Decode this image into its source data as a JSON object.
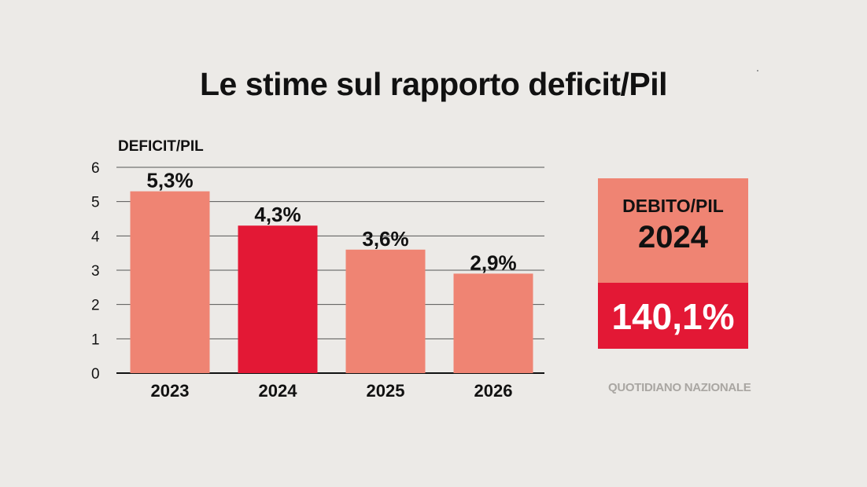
{
  "title": "Le stime sul rapporto deficit/Pil",
  "chart_data": {
    "type": "bar",
    "ylabel": "DEFICIT/PIL",
    "ylim": [
      0,
      6
    ],
    "yticks": [
      0,
      1,
      2,
      3,
      4,
      5,
      6
    ],
    "grid": true,
    "categories": [
      "2023",
      "2024",
      "2025",
      "2026"
    ],
    "values": [
      5.3,
      4.3,
      3.6,
      2.9
    ],
    "data_labels": [
      "5,3%",
      "4,3%",
      "3,6%",
      "2,9%"
    ],
    "colors": [
      "#ef8473",
      "#e31835",
      "#ef8473",
      "#ef8473"
    ]
  },
  "debt_box": {
    "label": "DEBITO/PIL",
    "year": "2024",
    "value": "140,1%"
  },
  "source": "QUOTIDIANO NAZIONALE"
}
